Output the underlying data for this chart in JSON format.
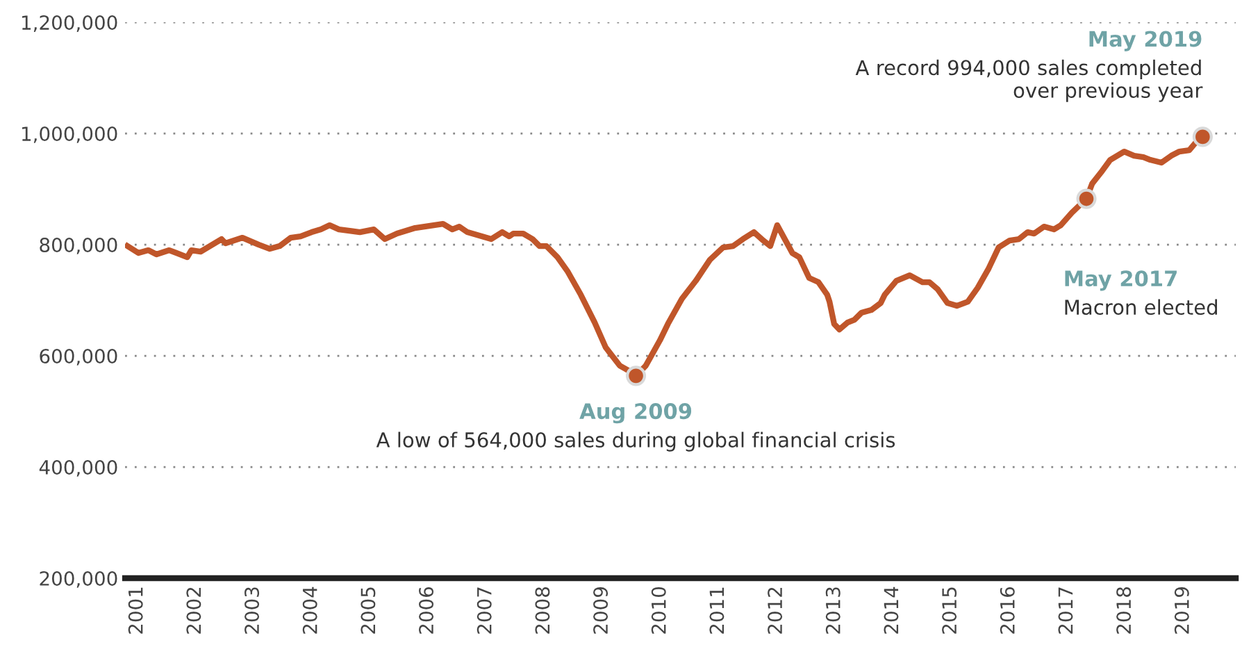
{
  "chart_data": {
    "type": "line",
    "x": [
      2000.83,
      2001.02,
      2001.19,
      2001.33,
      2001.55,
      2001.86,
      2001.93,
      2002.09,
      2002.45,
      2002.52,
      2002.81,
      2003.09,
      2003.28,
      2003.45,
      2003.64,
      2003.81,
      2004.0,
      2004.16,
      2004.31,
      2004.47,
      2004.83,
      2005.07,
      2005.26,
      2005.47,
      2005.78,
      2006.26,
      2006.42,
      2006.54,
      2006.68,
      2007.09,
      2007.28,
      2007.4,
      2007.47,
      2007.64,
      2007.8,
      2007.92,
      2008.04,
      2008.23,
      2008.4,
      2008.63,
      2008.87,
      2009.06,
      2009.3,
      2009.47,
      2009.58,
      2009.75,
      2009.99,
      2010.13,
      2010.37,
      2010.61,
      2010.85,
      2011.08,
      2011.25,
      2011.42,
      2011.61,
      2011.77,
      2011.89,
      2012.01,
      2012.27,
      2012.39,
      2012.56,
      2012.72,
      2012.87,
      2012.91,
      2012.99,
      2013.08,
      2013.22,
      2013.34,
      2013.46,
      2013.63,
      2013.79,
      2013.86,
      2014.06,
      2014.29,
      2014.51,
      2014.63,
      2014.77,
      2014.94,
      2015.1,
      2015.29,
      2015.46,
      2015.65,
      2015.82,
      2016.01,
      2016.17,
      2016.32,
      2016.43,
      2016.6,
      2016.77,
      2016.89,
      2017.08,
      2017.33,
      2017.43,
      2017.6,
      2017.74,
      2017.98,
      2018.15,
      2018.31,
      2018.43,
      2018.62,
      2018.79,
      2018.93,
      2019.1,
      2019.22,
      2019.33
    ],
    "series": [
      {
        "color": "#c0562a",
        "values": [
          797500,
          785000,
          790000,
          782500,
          790000,
          777500,
          790000,
          787500,
          810000,
          802500,
          812500,
          800000,
          792500,
          797500,
          812500,
          815000,
          822500,
          827500,
          835000,
          827500,
          822500,
          827500,
          810000,
          820000,
          830000,
          837500,
          827500,
          832500,
          822500,
          810000,
          822500,
          815000,
          820000,
          820000,
          810000,
          797500,
          797500,
          777500,
          752500,
          710000,
          660000,
          615000,
          582500,
          572500,
          564000,
          582500,
          627500,
          657500,
          702500,
          735000,
          772500,
          795000,
          797500,
          810000,
          822500,
          807500,
          797500,
          835000,
          785000,
          777500,
          740000,
          732500,
          710000,
          697500,
          657500,
          647500,
          660000,
          665000,
          677500,
          682500,
          695000,
          710000,
          735000,
          745000,
          732500,
          732500,
          720000,
          695000,
          690000,
          697500,
          722500,
          757500,
          795000,
          807500,
          810000,
          822500,
          820000,
          832500,
          827500,
          835000,
          857500,
          882500,
          910000,
          932500,
          952500,
          967500,
          960000,
          957500,
          952500,
          947500,
          960000,
          967500,
          970000,
          985000,
          994000
        ]
      },
      {
        "type": "scatter",
        "marker": "circle",
        "color": "#c0562a",
        "x": [
          2009.58,
          2017.33,
          2019.33
        ],
        "values": [
          564000,
          882500,
          994000
        ]
      }
    ],
    "ylim": [
      200000,
      1200000
    ],
    "yticks": [
      {
        "value": 200000,
        "label": "200,000"
      },
      {
        "value": 400000,
        "label": "400,000"
      },
      {
        "value": 600000,
        "label": "600,000"
      },
      {
        "value": 800000,
        "label": "800,000"
      },
      {
        "value": 1000000,
        "label": "1,000,000"
      },
      {
        "value": 1200000,
        "label": "1,200,000"
      }
    ],
    "xlim": [
      2000.79,
      2019.9
    ],
    "xticks": [
      2001,
      2002,
      2003,
      2004,
      2005,
      2006,
      2007,
      2008,
      2009,
      2010,
      2011,
      2012,
      2013,
      2014,
      2015,
      2016,
      2017,
      2018,
      2019
    ],
    "grid": "y",
    "line_style": "solid",
    "annotations": [
      "Aug 2009",
      "A low of 564,000 sales during global financial crisis",
      "May 2017",
      "Macron elected",
      "May 2019",
      "A record 994,000 sales completed\nover previous year"
    ]
  }
}
